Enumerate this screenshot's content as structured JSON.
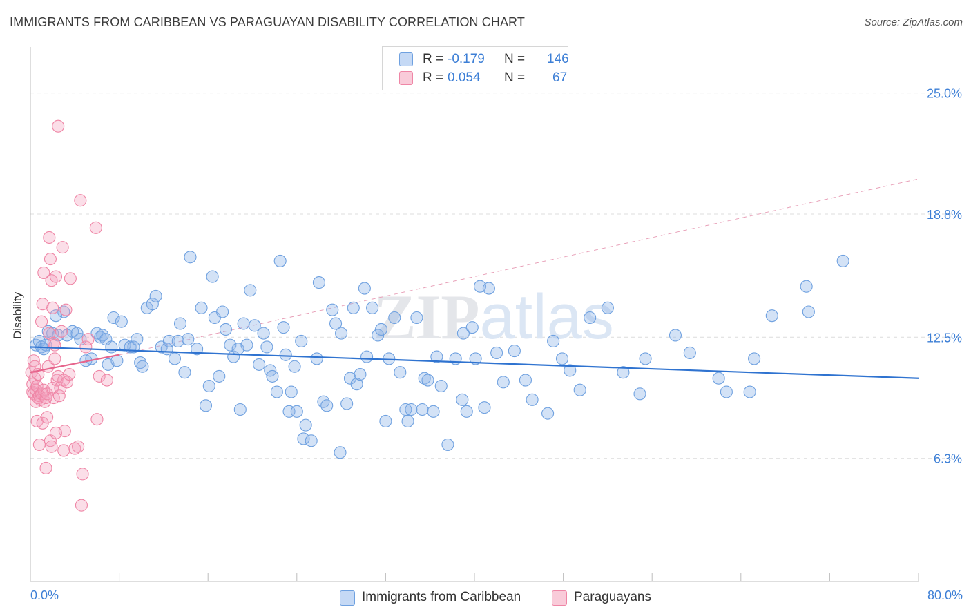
{
  "title": "IMMIGRANTS FROM CARIBBEAN VS PARAGUAYAN DISABILITY CORRELATION CHART",
  "source": "Source: ZipAtlas.com",
  "watermark": "ZIPatlas",
  "legend_top": {
    "rows": [
      {
        "r_label": "R =",
        "r_value": "-0.179",
        "n_label": "N =",
        "n_value": "146",
        "color": "#6fa1e0"
      },
      {
        "r_label": "R =",
        "r_value": "0.054",
        "n_label": "N =",
        "n_value": "67",
        "color": "#ef86a6"
      }
    ]
  },
  "legend_bottom": {
    "items": [
      {
        "label": "Immigrants from Caribbean",
        "color": "#6fa1e0"
      },
      {
        "label": "Paraguayans",
        "color": "#ef86a6"
      }
    ]
  },
  "chart_data": {
    "type": "scatter",
    "title": "IMMIGRANTS FROM CARIBBEAN VS PARAGUAYAN DISABILITY CORRELATION CHART",
    "xlabel": "",
    "ylabel": "Disability",
    "xlim": [
      0,
      80
    ],
    "ylim": [
      0,
      27
    ],
    "x_tick_labels": [
      "0.0%",
      "80.0%"
    ],
    "y_ticks": [
      6.3,
      12.5,
      18.8,
      25.0
    ],
    "y_tick_labels": [
      "6.3%",
      "12.5%",
      "18.8%",
      "25.0%"
    ],
    "grid": true,
    "legend_position": "top-center",
    "series": [
      {
        "name": "Immigrants from Caribbean",
        "color": "#6fa1e0",
        "stats": {
          "R": -0.179,
          "N": 146
        },
        "trend": {
          "x": [
            0,
            80
          ],
          "y": [
            12.0,
            10.4
          ],
          "style": "solid"
        },
        "points": [
          [
            0.5,
            12.1
          ],
          [
            0.8,
            12.3
          ],
          [
            1.0,
            12.0
          ],
          [
            1.2,
            11.9
          ],
          [
            1.4,
            12.1
          ],
          [
            1.6,
            12.8
          ],
          [
            2.0,
            12.7
          ],
          [
            2.3,
            13.6
          ],
          [
            2.5,
            12.6
          ],
          [
            3.0,
            13.8
          ],
          [
            3.3,
            12.6
          ],
          [
            3.8,
            12.8
          ],
          [
            4.2,
            12.7
          ],
          [
            4.5,
            12.4
          ],
          [
            5.0,
            11.3
          ],
          [
            5.5,
            11.4
          ],
          [
            6.0,
            12.7
          ],
          [
            6.3,
            12.5
          ],
          [
            6.5,
            12.6
          ],
          [
            6.8,
            12.4
          ],
          [
            7.0,
            11.1
          ],
          [
            7.3,
            12.0
          ],
          [
            7.5,
            13.5
          ],
          [
            7.8,
            11.3
          ],
          [
            8.2,
            13.3
          ],
          [
            8.5,
            12.1
          ],
          [
            9.0,
            12.0
          ],
          [
            9.3,
            12.0
          ],
          [
            9.6,
            12.4
          ],
          [
            9.9,
            11.2
          ],
          [
            10.1,
            11.0
          ],
          [
            10.5,
            14.0
          ],
          [
            11.0,
            14.2
          ],
          [
            11.3,
            14.6
          ],
          [
            11.8,
            12.0
          ],
          [
            12.3,
            11.9
          ],
          [
            12.5,
            12.3
          ],
          [
            13.0,
            11.4
          ],
          [
            13.3,
            12.3
          ],
          [
            13.5,
            13.2
          ],
          [
            13.9,
            10.7
          ],
          [
            14.2,
            12.4
          ],
          [
            14.4,
            16.6
          ],
          [
            15.0,
            11.9
          ],
          [
            15.4,
            14.0
          ],
          [
            15.8,
            9.0
          ],
          [
            16.1,
            10.0
          ],
          [
            16.4,
            15.6
          ],
          [
            16.6,
            13.5
          ],
          [
            17.0,
            10.5
          ],
          [
            17.3,
            13.8
          ],
          [
            17.6,
            12.9
          ],
          [
            18.0,
            12.1
          ],
          [
            18.3,
            11.5
          ],
          [
            18.7,
            11.9
          ],
          [
            18.9,
            8.8
          ],
          [
            19.2,
            13.2
          ],
          [
            19.5,
            12.1
          ],
          [
            19.8,
            14.9
          ],
          [
            20.2,
            13.1
          ],
          [
            20.6,
            11.1
          ],
          [
            21.0,
            12.7
          ],
          [
            21.3,
            12.0
          ],
          [
            21.6,
            10.8
          ],
          [
            21.8,
            10.5
          ],
          [
            22.2,
            9.7
          ],
          [
            22.5,
            16.4
          ],
          [
            22.8,
            13.0
          ],
          [
            23.0,
            11.6
          ],
          [
            23.3,
            8.7
          ],
          [
            23.5,
            9.7
          ],
          [
            23.8,
            11.0
          ],
          [
            24.0,
            8.7
          ],
          [
            24.4,
            12.3
          ],
          [
            24.6,
            7.3
          ],
          [
            24.8,
            8.0
          ],
          [
            25.3,
            7.2
          ],
          [
            25.8,
            11.4
          ],
          [
            26.0,
            15.3
          ],
          [
            26.4,
            9.2
          ],
          [
            26.7,
            9.0
          ],
          [
            27.2,
            13.9
          ],
          [
            27.5,
            13.2
          ],
          [
            27.9,
            6.6
          ],
          [
            28.0,
            12.7
          ],
          [
            28.5,
            9.1
          ],
          [
            28.8,
            10.4
          ],
          [
            29.1,
            14.0
          ],
          [
            29.4,
            10.1
          ],
          [
            29.7,
            10.6
          ],
          [
            30.1,
            15.0
          ],
          [
            30.3,
            11.5
          ],
          [
            30.8,
            14.0
          ],
          [
            31.3,
            12.6
          ],
          [
            31.6,
            12.9
          ],
          [
            32.0,
            8.2
          ],
          [
            32.3,
            11.4
          ],
          [
            32.8,
            13.5
          ],
          [
            33.3,
            10.7
          ],
          [
            33.8,
            8.8
          ],
          [
            34.0,
            8.2
          ],
          [
            34.3,
            8.8
          ],
          [
            34.8,
            13.5
          ],
          [
            35.3,
            8.8
          ],
          [
            35.5,
            10.4
          ],
          [
            35.8,
            10.3
          ],
          [
            36.3,
            8.7
          ],
          [
            36.6,
            11.5
          ],
          [
            37.0,
            10.0
          ],
          [
            37.6,
            7.0
          ],
          [
            38.3,
            11.4
          ],
          [
            38.9,
            9.3
          ],
          [
            39.0,
            12.7
          ],
          [
            39.3,
            8.7
          ],
          [
            39.8,
            13.0
          ],
          [
            40.1,
            11.4
          ],
          [
            40.5,
            15.1
          ],
          [
            40.9,
            8.9
          ],
          [
            41.3,
            15.0
          ],
          [
            42.0,
            11.7
          ],
          [
            42.6,
            10.2
          ],
          [
            43.6,
            11.8
          ],
          [
            44.6,
            10.3
          ],
          [
            45.2,
            9.3
          ],
          [
            46.6,
            8.6
          ],
          [
            47.1,
            12.3
          ],
          [
            47.9,
            11.4
          ],
          [
            48.6,
            10.8
          ],
          [
            49.5,
            9.8
          ],
          [
            50.4,
            13.5
          ],
          [
            52.0,
            14.0
          ],
          [
            53.4,
            10.7
          ],
          [
            54.9,
            9.6
          ],
          [
            55.4,
            11.4
          ],
          [
            58.1,
            12.6
          ],
          [
            59.4,
            11.7
          ],
          [
            62.0,
            10.4
          ],
          [
            62.7,
            9.7
          ],
          [
            64.8,
            9.7
          ],
          [
            65.2,
            11.4
          ],
          [
            66.8,
            13.6
          ],
          [
            69.9,
            15.1
          ],
          [
            70.1,
            13.8
          ],
          [
            73.2,
            16.4
          ]
        ]
      },
      {
        "name": "Paraguayans",
        "color": "#ef86a6",
        "stats": {
          "R": 0.054,
          "N": 67
        },
        "trend": {
          "x": [
            0,
            8
          ],
          "y": [
            10.7,
            11.6
          ],
          "style": "solid"
        },
        "trend_extended": {
          "x": [
            8,
            80
          ],
          "y": [
            11.6,
            20.6
          ],
          "style": "dashed"
        },
        "points": [
          [
            0.1,
            10.7
          ],
          [
            0.2,
            10.1
          ],
          [
            0.2,
            9.7
          ],
          [
            0.3,
            11.3
          ],
          [
            0.3,
            9.6
          ],
          [
            0.4,
            11.0
          ],
          [
            0.4,
            10.4
          ],
          [
            0.5,
            9.2
          ],
          [
            0.5,
            9.8
          ],
          [
            0.6,
            8.2
          ],
          [
            0.6,
            10.0
          ],
          [
            0.7,
            9.4
          ],
          [
            0.7,
            10.6
          ],
          [
            0.8,
            9.5
          ],
          [
            0.8,
            7.0
          ],
          [
            0.9,
            9.3
          ],
          [
            1.0,
            13.3
          ],
          [
            1.0,
            9.6
          ],
          [
            1.1,
            14.2
          ],
          [
            1.1,
            8.1
          ],
          [
            1.2,
            15.8
          ],
          [
            1.2,
            9.8
          ],
          [
            1.3,
            9.2
          ],
          [
            1.4,
            5.8
          ],
          [
            1.4,
            9.4
          ],
          [
            1.5,
            9.6
          ],
          [
            1.5,
            8.4
          ],
          [
            1.6,
            11.0
          ],
          [
            1.7,
            17.6
          ],
          [
            1.7,
            12.7
          ],
          [
            1.8,
            16.5
          ],
          [
            1.8,
            7.2
          ],
          [
            1.9,
            15.4
          ],
          [
            1.9,
            6.9
          ],
          [
            2.0,
            14.0
          ],
          [
            2.0,
            9.9
          ],
          [
            2.1,
            9.4
          ],
          [
            2.1,
            12.2
          ],
          [
            2.2,
            12.1
          ],
          [
            2.2,
            11.4
          ],
          [
            2.3,
            15.6
          ],
          [
            2.3,
            7.6
          ],
          [
            2.4,
            10.3
          ],
          [
            2.5,
            23.3
          ],
          [
            2.5,
            10.5
          ],
          [
            2.6,
            9.5
          ],
          [
            2.7,
            9.9
          ],
          [
            2.8,
            12.8
          ],
          [
            2.9,
            17.1
          ],
          [
            3.0,
            6.7
          ],
          [
            3.0,
            10.3
          ],
          [
            3.1,
            7.7
          ],
          [
            3.2,
            13.9
          ],
          [
            3.3,
            10.2
          ],
          [
            3.5,
            10.6
          ],
          [
            3.6,
            15.5
          ],
          [
            4.0,
            6.8
          ],
          [
            4.3,
            6.9
          ],
          [
            4.5,
            19.5
          ],
          [
            4.6,
            3.9
          ],
          [
            4.7,
            5.5
          ],
          [
            5.0,
            12.0
          ],
          [
            5.2,
            12.4
          ],
          [
            5.9,
            18.1
          ],
          [
            6.0,
            8.3
          ],
          [
            6.2,
            10.5
          ],
          [
            6.9,
            10.3
          ]
        ]
      }
    ]
  }
}
